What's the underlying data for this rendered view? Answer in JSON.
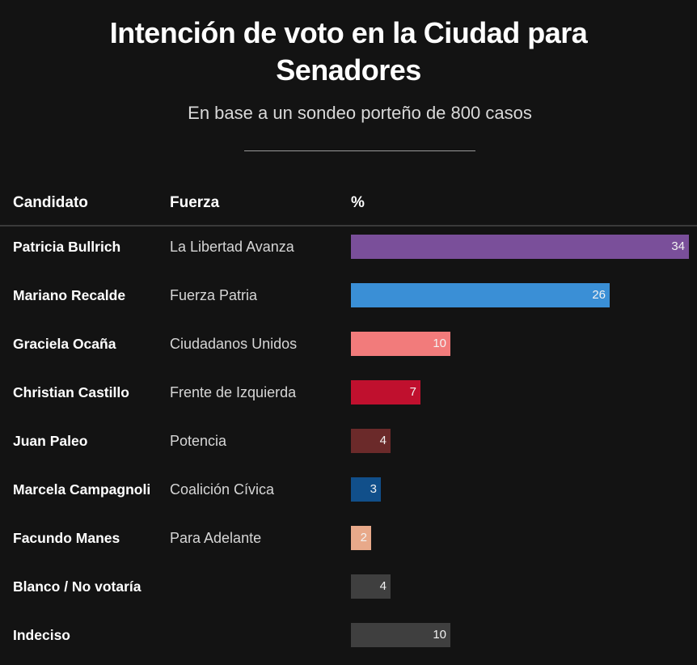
{
  "title_line1": "Intención de voto en la Ciudad para",
  "title_line2": "Senadores",
  "subtitle": "En base a un sondeo porteño de 800 casos",
  "headers": {
    "candidate": "Candidato",
    "party": "Fuerza",
    "percent": "%"
  },
  "chart_data": {
    "type": "bar",
    "orientation": "horizontal",
    "xlim": [
      0,
      34
    ],
    "rows": [
      {
        "candidate": "Patricia Bullrich",
        "party": "La Libertad Avanza",
        "value": 34,
        "color": "#7a4f9a"
      },
      {
        "candidate": "Mariano Recalde",
        "party": "Fuerza Patria",
        "value": 26,
        "color": "#3a8fd6"
      },
      {
        "candidate": "Graciela Ocaña",
        "party": "Ciudadanos Unidos",
        "value": 10,
        "color": "#f27b7b"
      },
      {
        "candidate": "Christian Castillo",
        "party": "Frente de Izquierda",
        "value": 7,
        "color": "#c0102e"
      },
      {
        "candidate": "Juan Paleo",
        "party": "Potencia",
        "value": 4,
        "color": "#6b2a2a"
      },
      {
        "candidate": "Marcela Campagnoli",
        "party": "Coalición Cívica",
        "value": 3,
        "color": "#114f8a"
      },
      {
        "candidate": "Facundo Manes",
        "party": "Para Adelante",
        "value": 2,
        "color": "#e8a98a"
      },
      {
        "candidate": "Blanco / No votaría",
        "party": "",
        "value": 4,
        "color": "#3f3f3f"
      },
      {
        "candidate": "Indeciso",
        "party": "",
        "value": 10,
        "color": "#3f3f3f"
      }
    ]
  }
}
